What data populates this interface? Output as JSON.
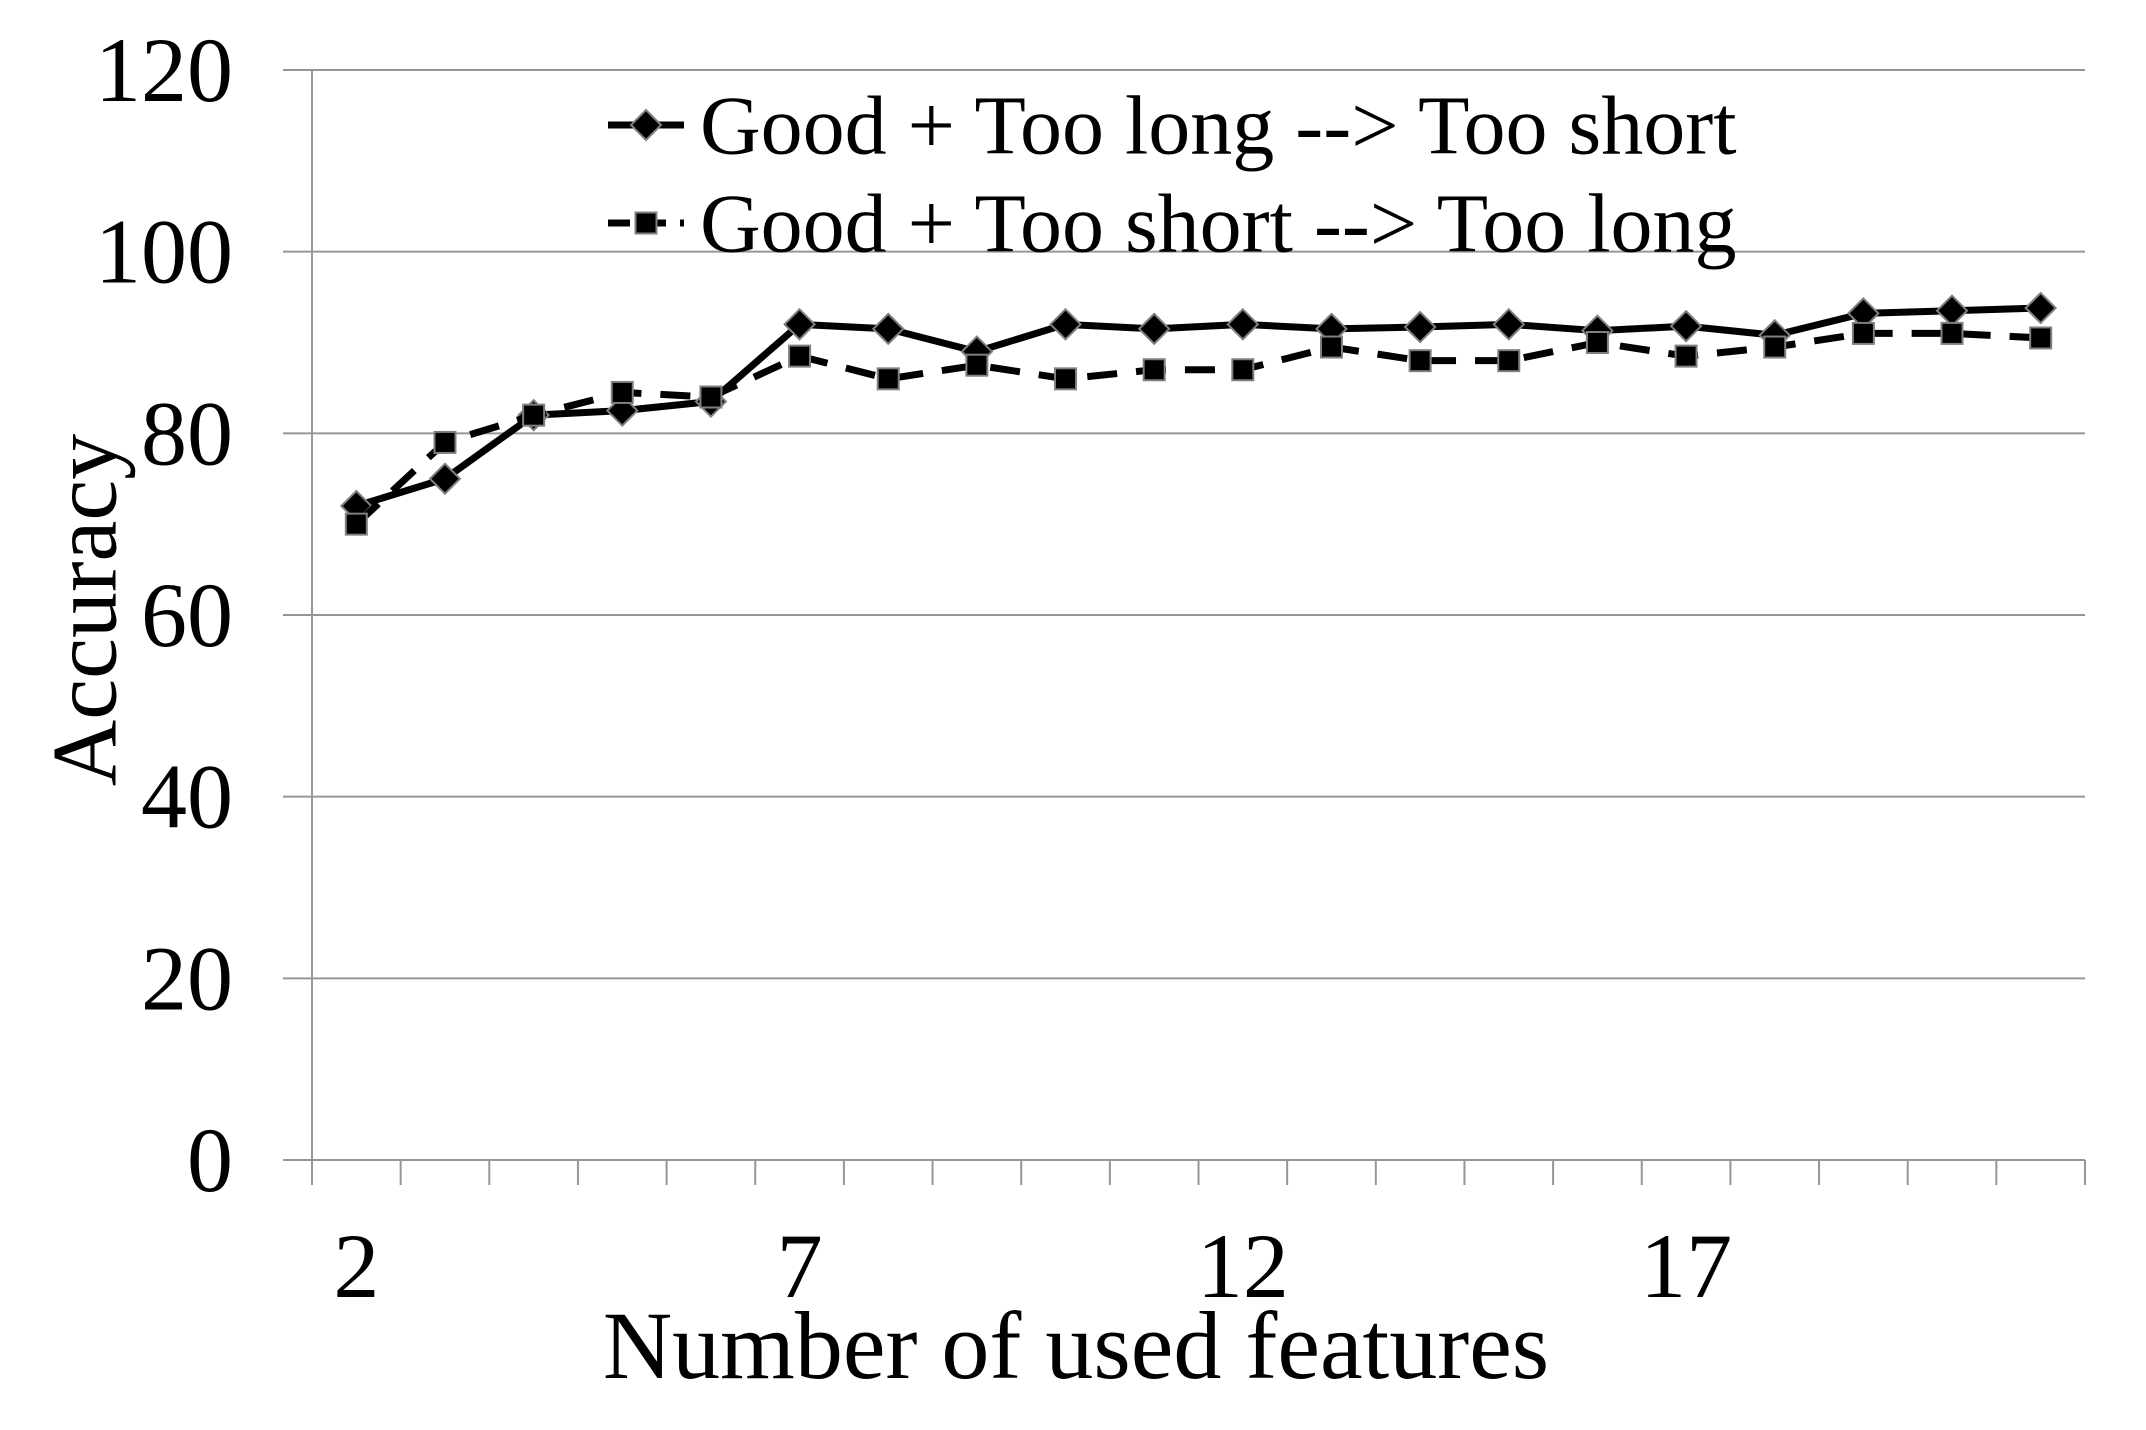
{
  "chart_data": {
    "type": "line",
    "title": "",
    "xlabel": "Number of used features",
    "ylabel": "Accuracy",
    "x": [
      2,
      3,
      4,
      5,
      6,
      7,
      8,
      9,
      10,
      11,
      12,
      13,
      14,
      15,
      16,
      17,
      18,
      19,
      20,
      21
    ],
    "x_tick_labels": [
      "2",
      "7",
      "12",
      "17"
    ],
    "y_ticks": [
      0,
      20,
      40,
      60,
      80,
      100,
      120
    ],
    "y_tick_labels": [
      "0",
      "20",
      "40",
      "60",
      "80",
      "100",
      "120"
    ],
    "ylim": [
      0,
      120
    ],
    "grid": "horizontal",
    "legend_position": "top-center",
    "colors": {
      "series": "#000000",
      "grid": "#969696",
      "text": "#000000",
      "marker_edge": "#7f7f7f"
    },
    "series": [
      {
        "name": "Good + Too long --> Too short",
        "marker": "diamond",
        "line": "solid",
        "color": "#000000",
        "values": [
          72,
          75,
          82,
          82.5,
          83.5,
          92,
          91.5,
          89,
          92,
          91.5,
          92,
          91.5,
          91.7,
          92,
          91.3,
          91.8,
          90.8,
          93.2,
          93.5,
          93.8
        ]
      },
      {
        "name": "Good + Too short --> Too long",
        "marker": "square",
        "line": "dashed",
        "color": "#000000",
        "values": [
          70,
          79,
          82,
          84.5,
          84,
          88.5,
          86,
          87.5,
          86,
          87,
          87,
          89.5,
          88,
          88,
          90,
          88.5,
          89.5,
          91,
          91,
          90.5
        ]
      }
    ]
  }
}
